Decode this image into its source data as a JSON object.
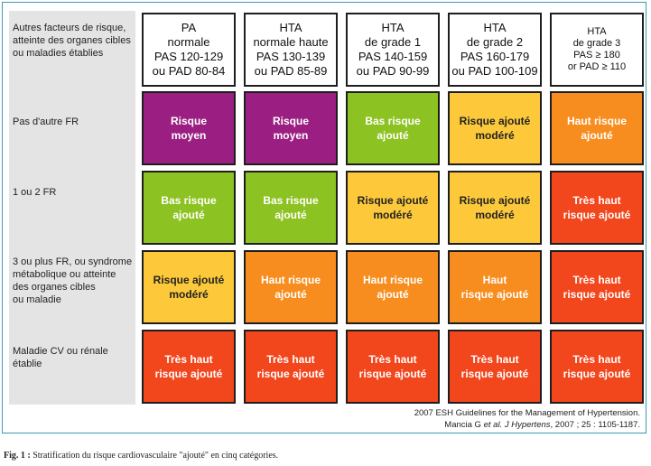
{
  "corner_label": "Autres facteurs de risque,\natteinte des organes cibles\nou maladies établies",
  "columns": [
    {
      "lines": [
        "PA",
        "normale",
        "PAS 120-129",
        "ou PAD 80-84"
      ]
    },
    {
      "lines": [
        "HTA",
        "normale haute",
        "PAS 130-139",
        "ou PAD 85-89"
      ]
    },
    {
      "lines": [
        "HTA",
        "de grade 1",
        "PAS 140-159",
        "ou PAD 90-99"
      ]
    },
    {
      "lines": [
        "HTA",
        "de grade 2",
        "PAS 160-179",
        "ou PAD 100-109"
      ]
    },
    {
      "lines": [
        "HTA",
        "de grade 3",
        "PAS ≥ 180",
        "or PAD ≥ 110"
      ]
    }
  ],
  "rows": [
    {
      "label": "Pas d'autre FR",
      "cells": [
        {
          "text": "Risque\nmoyen",
          "color": "#9b1f82",
          "text_color": "#ffffff"
        },
        {
          "text": "Risque\nmoyen",
          "color": "#9b1f82",
          "text_color": "#ffffff"
        },
        {
          "text": "Bas risque\najouté",
          "color": "#8cc221",
          "text_color": "#ffffff"
        },
        {
          "text": "Risque ajouté\nmodéré",
          "color": "#fdc93a",
          "text_color": "#222222"
        },
        {
          "text": "Haut risque\najouté",
          "color": "#f78d1e",
          "text_color": "#ffffff"
        }
      ]
    },
    {
      "label": "1 ou 2 FR",
      "cells": [
        {
          "text": "Bas risque\najouté",
          "color": "#8cc221",
          "text_color": "#ffffff"
        },
        {
          "text": "Bas risque\najouté",
          "color": "#8cc221",
          "text_color": "#ffffff"
        },
        {
          "text": "Risque ajouté\nmodéré",
          "color": "#fdc93a",
          "text_color": "#222222"
        },
        {
          "text": "Risque ajouté\nmodéré",
          "color": "#fdc93a",
          "text_color": "#222222"
        },
        {
          "text": "Très haut\nrisque ajouté",
          "color": "#f2461d",
          "text_color": "#ffffff"
        }
      ]
    },
    {
      "label": "3 ou plus FR, ou syndrome\nmétabolique ou atteinte\ndes organes cibles\nou maladie",
      "cells": [
        {
          "text": "Risque ajouté\nmodéré",
          "color": "#fdc93a",
          "text_color": "#222222"
        },
        {
          "text": "Haut risque\najouté",
          "color": "#f78d1e",
          "text_color": "#ffffff"
        },
        {
          "text": "Haut risque\najouté",
          "color": "#f78d1e",
          "text_color": "#ffffff"
        },
        {
          "text": "Haut\nrisque ajouté",
          "color": "#f78d1e",
          "text_color": "#ffffff"
        },
        {
          "text": "Très haut\nrisque ajouté",
          "color": "#f2461d",
          "text_color": "#ffffff"
        }
      ]
    },
    {
      "label": "Maladie CV ou rénale\nétablie",
      "cells": [
        {
          "text": "Très haut\nrisque ajouté",
          "color": "#f2461d",
          "text_color": "#ffffff"
        },
        {
          "text": "Très haut\nrisque ajouté",
          "color": "#f2461d",
          "text_color": "#ffffff"
        },
        {
          "text": "Très haut\nrisque ajouté",
          "color": "#f2461d",
          "text_color": "#ffffff"
        },
        {
          "text": "Très haut\nrisque ajouté",
          "color": "#f2461d",
          "text_color": "#ffffff"
        },
        {
          "text": "Très haut\nrisque ajouté",
          "color": "#f2461d",
          "text_color": "#ffffff"
        }
      ]
    }
  ],
  "citation": {
    "line1": "2007 ESH Guidelines for the Management of Hypertension.",
    "line2_pre": "Mancia G ",
    "line2_italic": "et al. J Hypertens",
    "line2_post": ", 2007 ; 25 : 1105-1187."
  },
  "caption": {
    "fig_label": "Fig. 1 :",
    "text": " Stratification du risque cardiovasculaire \"ajouté\" en cinq catégories."
  }
}
